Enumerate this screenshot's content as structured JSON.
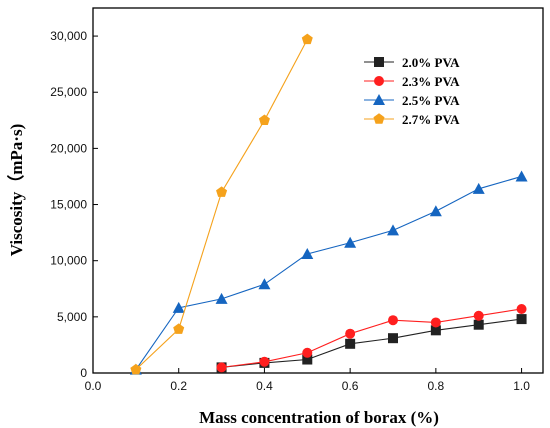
{
  "chart_data": {
    "type": "line",
    "title": "",
    "xlabel": "Mass concentration of borax (%)",
    "ylabel": "Viscosity（mPa·s)",
    "xlim": [
      0.0,
      1.05
    ],
    "ylim": [
      0,
      32500
    ],
    "x_ticks": [
      0.0,
      0.2,
      0.4,
      0.6,
      0.8,
      1.0
    ],
    "x_tick_labels": [
      "0.0",
      "0.2",
      "0.4",
      "0.6",
      "0.8",
      "1.0"
    ],
    "y_ticks": [
      0,
      5000,
      10000,
      15000,
      20000,
      25000,
      30000
    ],
    "y_tick_labels": [
      "0",
      "5,000",
      "10,000",
      "15,000",
      "20,000",
      "25,000",
      "30,000"
    ],
    "grid": false,
    "legend_position": "top-right",
    "series": [
      {
        "name": "2.0% PVA",
        "color": "#222222",
        "marker": "square",
        "x": [
          0.3,
          0.4,
          0.5,
          0.6,
          0.7,
          0.8,
          0.9,
          1.0
        ],
        "y": [
          500,
          900,
          1200,
          2600,
          3100,
          3800,
          4300,
          4800
        ]
      },
      {
        "name": "2.3% PVA",
        "color": "#ff1f1f",
        "marker": "circle",
        "x": [
          0.3,
          0.4,
          0.5,
          0.6,
          0.7,
          0.8,
          0.9,
          1.0
        ],
        "y": [
          500,
          1000,
          1800,
          3500,
          4700,
          4500,
          5100,
          5700
        ]
      },
      {
        "name": "2.5% PVA",
        "color": "#1565c0",
        "marker": "triangle",
        "x": [
          0.1,
          0.2,
          0.3,
          0.4,
          0.5,
          0.6,
          0.7,
          0.8,
          0.9,
          1.0
        ],
        "y": [
          300,
          5800,
          6600,
          7900,
          10600,
          11600,
          12700,
          14400,
          16400,
          17500
        ]
      },
      {
        "name": "2.7% PVA",
        "color": "#f5a21c",
        "marker": "pentagon",
        "x": [
          0.1,
          0.2,
          0.3,
          0.4,
          0.5
        ],
        "y": [
          300,
          3900,
          16100,
          22500,
          29700
        ]
      }
    ]
  }
}
